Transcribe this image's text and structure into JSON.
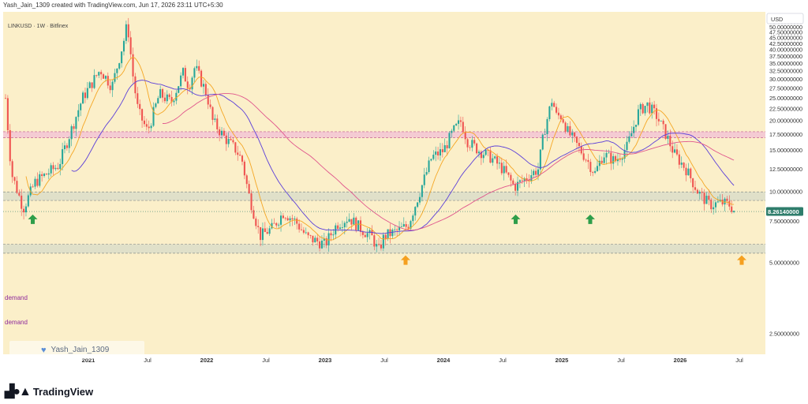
{
  "header": {
    "caption": "Yash_Jain_1309 created with TradingView.com, Jun 17, 2026 23:11 UTC+5:30"
  },
  "chart": {
    "symbol_line": "LINKUSD · 1W · Bitfinex",
    "currency_button": "USD",
    "watermark": "Yash_Jain_1309",
    "logo_text": "TradingView",
    "current_price_label": "8.26140000",
    "zone_labels": {
      "upper_demand": "demand",
      "lower_demand": "demand"
    },
    "colors": {
      "background": "#fbefc9",
      "up": "#26a69a",
      "down": "#ef5350",
      "ma_fast": "#f5a623",
      "ma_mid": "#5b3fd9",
      "ma_slow": "#e0558c",
      "resistance_zone": "#f3c2d6",
      "demand_zone": "#d9dcc9",
      "arrow_green": "#2e9e4a",
      "arrow_orange": "#f5a020"
    }
  },
  "chart_data": {
    "type": "candlestick",
    "symbol": "LINKUSD",
    "interval": "1W",
    "exchange": "Bitfinex",
    "y_axis": {
      "ticks": [
        "55.00000000",
        "52.50000000",
        "50.00000000",
        "47.50000000",
        "45.00000000",
        "42.50000000",
        "40.00000000",
        "37.50000000",
        "35.00000000",
        "32.50000000",
        "30.00000000",
        "27.50000000",
        "25.00000000",
        "22.50000000",
        "20.00000000",
        "17.50000000",
        "15.00000000",
        "12.50000000",
        "10.00000000",
        "7.50000000",
        "5.00000000",
        "2.50000000"
      ],
      "scale": "log"
    },
    "x_axis": {
      "ticks": [
        {
          "label": "2021",
          "t": 2021.0,
          "year": true
        },
        {
          "label": "Jul",
          "t": 2021.5,
          "year": false
        },
        {
          "label": "2022",
          "t": 2022.0,
          "year": true
        },
        {
          "label": "Jul",
          "t": 2022.5,
          "year": false
        },
        {
          "label": "2023",
          "t": 2023.0,
          "year": true
        },
        {
          "label": "Jul",
          "t": 2023.5,
          "year": false
        },
        {
          "label": "2024",
          "t": 2024.0,
          "year": true
        },
        {
          "label": "Jul",
          "t": 2024.5,
          "year": false
        },
        {
          "label": "2025",
          "t": 2025.0,
          "year": true
        },
        {
          "label": "Jul",
          "t": 2025.5,
          "year": false
        },
        {
          "label": "2026",
          "t": 2026.0,
          "year": true
        },
        {
          "label": "Jul",
          "t": 2026.5,
          "year": false
        }
      ]
    },
    "current_price": 8.2614,
    "zones": [
      {
        "name": "resistance",
        "low": 17.0,
        "high": 18.0
      },
      {
        "name": "demand-upper",
        "low": 9.2,
        "high": 10.0
      },
      {
        "name": "demand-lower",
        "low": 5.5,
        "high": 6.0
      }
    ],
    "price_path": [
      [
        2020.3,
        25.0
      ],
      [
        2020.35,
        12.0
      ],
      [
        2020.45,
        8.5
      ],
      [
        2020.55,
        11.0
      ],
      [
        2020.75,
        13.0
      ],
      [
        2020.85,
        18.0
      ],
      [
        2020.95,
        25.0
      ],
      [
        2021.1,
        33.0
      ],
      [
        2021.2,
        28.0
      ],
      [
        2021.3,
        44.0
      ],
      [
        2021.33,
        52.0
      ],
      [
        2021.38,
        30.0
      ],
      [
        2021.42,
        22.0
      ],
      [
        2021.5,
        18.0
      ],
      [
        2021.6,
        26.0
      ],
      [
        2021.7,
        24.0
      ],
      [
        2021.8,
        32.0
      ],
      [
        2021.85,
        28.0
      ],
      [
        2021.9,
        34.0
      ],
      [
        2022.0,
        26.0
      ],
      [
        2022.05,
        20.0
      ],
      [
        2022.15,
        17.0
      ],
      [
        2022.25,
        15.0
      ],
      [
        2022.3,
        13.5
      ],
      [
        2022.35,
        10.0
      ],
      [
        2022.45,
        6.5
      ],
      [
        2022.55,
        7.0
      ],
      [
        2022.65,
        8.2
      ],
      [
        2022.75,
        7.5
      ],
      [
        2022.85,
        6.4
      ],
      [
        2023.0,
        6.0
      ],
      [
        2023.1,
        7.3
      ],
      [
        2023.2,
        7.8
      ],
      [
        2023.3,
        7.0
      ],
      [
        2023.4,
        6.4
      ],
      [
        2023.45,
        5.6
      ],
      [
        2023.5,
        6.5
      ],
      [
        2023.6,
        6.8
      ],
      [
        2023.7,
        7.2
      ],
      [
        2023.8,
        10.0
      ],
      [
        2023.9,
        14.0
      ],
      [
        2024.0,
        15.0
      ],
      [
        2024.08,
        18.0
      ],
      [
        2024.15,
        20.0
      ],
      [
        2024.2,
        16.5
      ],
      [
        2024.3,
        15.0
      ],
      [
        2024.4,
        14.0
      ],
      [
        2024.5,
        12.5
      ],
      [
        2024.6,
        10.5
      ],
      [
        2024.7,
        11.5
      ],
      [
        2024.8,
        12.5
      ],
      [
        2024.85,
        18.0
      ],
      [
        2024.92,
        25.0
      ],
      [
        2024.95,
        21.0
      ],
      [
        2025.0,
        21.0
      ],
      [
        2025.05,
        18.0
      ],
      [
        2025.12,
        16.0
      ],
      [
        2025.2,
        14.0
      ],
      [
        2025.28,
        12.0
      ],
      [
        2025.35,
        14.5
      ],
      [
        2025.45,
        13.5
      ],
      [
        2025.55,
        15.5
      ],
      [
        2025.65,
        22.0
      ],
      [
        2025.72,
        23.5
      ],
      [
        2025.8,
        21.0
      ],
      [
        2025.88,
        17.5
      ],
      [
        2025.95,
        14.5
      ],
      [
        2026.05,
        12.5
      ],
      [
        2026.15,
        10.0
      ],
      [
        2026.25,
        8.8
      ],
      [
        2026.35,
        9.0
      ],
      [
        2026.42,
        8.8
      ],
      [
        2026.46,
        8.26
      ]
    ],
    "arrows": [
      {
        "t": 2020.53,
        "price": 7.6,
        "color": "green"
      },
      {
        "t": 2023.68,
        "price": 5.1,
        "color": "orange"
      },
      {
        "t": 2024.61,
        "price": 7.6,
        "color": "green"
      },
      {
        "t": 2025.24,
        "price": 7.6,
        "color": "green"
      },
      {
        "t": 2026.52,
        "price": 5.1,
        "color": "orange"
      }
    ]
  }
}
